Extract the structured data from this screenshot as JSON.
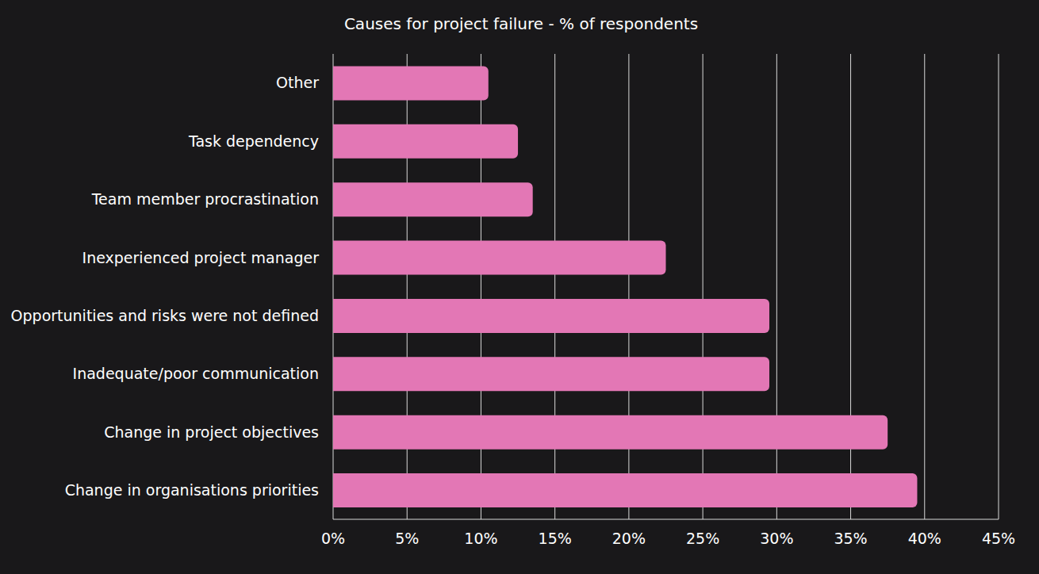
{
  "chart_data": {
    "type": "bar",
    "title": "Causes for project failure - % of respondents",
    "orientation": "horizontal",
    "categories": [
      "Other",
      "Task dependency",
      "Team member procrastination",
      "Inexperienced project manager",
      "Opportunities and risks were not defined",
      "Inadequate/poor communication",
      "Change in project objectives",
      "Change in organisations priorities"
    ],
    "values": [
      10.5,
      12.5,
      13.5,
      22.5,
      29.5,
      29.5,
      37.5,
      39.5
    ],
    "color": "#e377b5",
    "xlim": [
      0,
      45
    ],
    "xticks": [
      {
        "value": 0,
        "label": "0%"
      },
      {
        "value": 5,
        "label": "5%"
      },
      {
        "value": 10,
        "label": "10%"
      },
      {
        "value": 15,
        "label": "15%"
      },
      {
        "value": 20,
        "label": "20%"
      },
      {
        "value": 25,
        "label": "25%"
      },
      {
        "value": 30,
        "label": "30%"
      },
      {
        "value": 35,
        "label": "35%"
      },
      {
        "value": 40,
        "label": "40%"
      },
      {
        "value": 45,
        "label": "45%"
      }
    ],
    "grid": true
  }
}
